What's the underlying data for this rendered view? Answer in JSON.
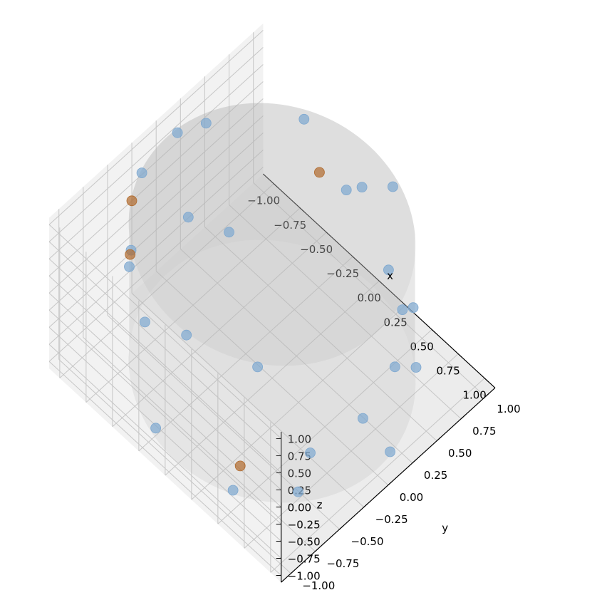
{
  "chart_data": {
    "type": "scatter",
    "projection": "3d",
    "title": "",
    "xlabel": "x",
    "ylabel": "y",
    "zlabel": "z",
    "xlim": [
      -1.1,
      1.1
    ],
    "ylim": [
      -1.1,
      1.1
    ],
    "zlim": [
      -1.1,
      1.1
    ],
    "x_ticks": [
      "−1.00",
      "−0.75",
      "−0.50",
      "−0.25",
      "0.00",
      "0.25",
      "0.50",
      "0.75",
      "1.00"
    ],
    "y_ticks": [
      "−1.00",
      "−0.75",
      "−0.50",
      "−0.25",
      "0.00",
      "0.25",
      "0.50",
      "0.75",
      "1.00"
    ],
    "z_ticks": [
      "−1.00",
      "−0.75",
      "−0.50",
      "−0.25",
      "0.00",
      "0.25",
      "0.50",
      "0.75",
      "1.00"
    ],
    "grid": true,
    "surface": {
      "shape": "cylinder",
      "radius": 1.0,
      "z_range": [
        -1.0,
        1.0
      ],
      "color": "#b4b4b4"
    },
    "colors": {
      "normal": "#7ea8d0",
      "highlight": "#b06a2c"
    },
    "series": [
      {
        "color": "#7ea8d0",
        "points": [
          [
            0.6,
            -0.8,
            0.95
          ],
          [
            0.1,
            -0.99,
            0.95
          ],
          [
            -0.6,
            -0.8,
            0.95
          ],
          [
            -0.95,
            -0.31,
            0.95
          ],
          [
            -0.99,
            0.1,
            0.95
          ],
          [
            0.95,
            0.31,
            0.85
          ],
          [
            -0.7,
            -0.71,
            0.45
          ],
          [
            0.98,
            0.2,
            0.2
          ],
          [
            -0.5,
            0.87,
            0.85
          ],
          [
            0.99,
            -0.14,
            -0.1
          ],
          [
            -0.2,
            0.98,
            0.1
          ],
          [
            0.2,
            0.98,
            -0.5
          ],
          [
            -0.98,
            0.2,
            -0.4
          ],
          [
            0.85,
            -0.53,
            -0.3
          ],
          [
            0.71,
            0.71,
            -0.85
          ],
          [
            0.8,
            -0.6,
            -0.85
          ],
          [
            0.99,
            0.14,
            -0.95
          ],
          [
            -0.2,
            -0.98,
            -0.85
          ],
          [
            0.45,
            -0.89,
            -0.95
          ],
          [
            -0.94,
            0.34,
            0.85
          ],
          [
            -0.34,
            -0.94,
            0.45
          ],
          [
            -0.87,
            0.5,
            -0.85
          ],
          [
            0.6,
            0.8,
            -0.25
          ],
          [
            -0.07,
            1.0,
            0.3
          ],
          [
            0.25,
            0.97,
            0.8
          ]
        ]
      },
      {
        "color": "#b06a2c",
        "points": [
          [
            0.5,
            -0.87,
            -0.55
          ],
          [
            -0.4,
            0.92,
            0.15
          ],
          [
            -0.83,
            -0.56,
            0.25
          ],
          [
            -0.87,
            -0.5,
            0.9
          ]
        ]
      }
    ]
  }
}
